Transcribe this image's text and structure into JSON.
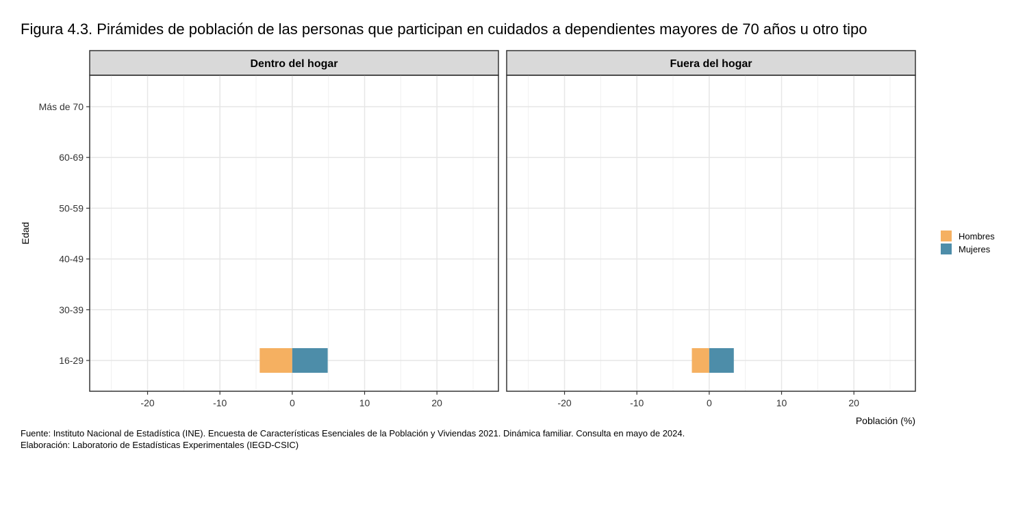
{
  "title": "Figura 4.3. Pirámides de población de las personas que participan en cuidados a dependientes mayores de 70 años u otro tipo",
  "caption_lines": [
    "Fuente: Instituto Nacional de Estadística (INE). Encuesta de Características Esenciales de la Población y Viviendas 2021. Dinámica familiar. Consulta en mayo de 2024.",
    "Elaboración: Laboratorio de Estadísticas Experimentales (IEGD-CSIC)"
  ],
  "chart_data": {
    "type": "bar",
    "orientation": "horizontal",
    "xlabel": "Población (%)",
    "ylabel": "Edad",
    "xlim": [
      -28,
      28.5
    ],
    "x_ticks": [
      -20,
      -10,
      0,
      10,
      20
    ],
    "categories": [
      "16-29",
      "30-39",
      "40-49",
      "50-59",
      "60-69",
      "Más de 70"
    ],
    "grid": true,
    "legend_position": "right",
    "legend": [
      {
        "name": "Hombres",
        "color": "#F5B061"
      },
      {
        "name": "Mujeres",
        "color": "#4D8DA9"
      }
    ],
    "panels": [
      {
        "title": "Dentro del hogar",
        "series": [
          {
            "name": "Hombres",
            "values": [
              -4.5,
              0,
              0,
              0,
              0,
              0
            ]
          },
          {
            "name": "Mujeres",
            "values": [
              4.9,
              0,
              0,
              0,
              0,
              0
            ]
          }
        ]
      },
      {
        "title": "Fuera del hogar",
        "series": [
          {
            "name": "Hombres",
            "values": [
              -2.4,
              0,
              0,
              0,
              0,
              0
            ]
          },
          {
            "name": "Mujeres",
            "values": [
              3.4,
              0,
              0,
              0,
              0,
              0
            ]
          }
        ]
      }
    ]
  }
}
